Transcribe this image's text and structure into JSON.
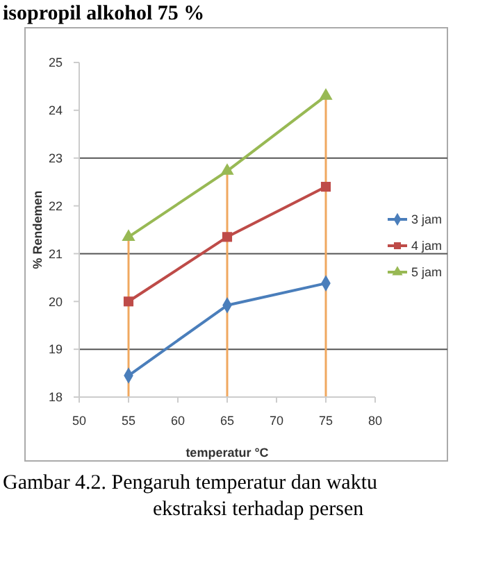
{
  "chart_data": {
    "type": "line",
    "title": "isopropil alkohol 75 %",
    "annotations": [
      "Gambar 4.2. Pengaruh temperatur dan waktu",
      "ekstraksi terhadap persen"
    ],
    "xlabel": "temperatur °C",
    "ylabel": "% Rendemen",
    "x": [
      55,
      65,
      75
    ],
    "series": [
      {
        "name": "3 jam",
        "color": "#4a7ebb",
        "marker": "diamond",
        "values": [
          18.45,
          19.92,
          20.38
        ]
      },
      {
        "name": "4 jam",
        "color": "#be4b48",
        "marker": "square",
        "values": [
          20.0,
          21.35,
          22.4
        ]
      },
      {
        "name": "5 jam",
        "color": "#98b954",
        "marker": "triangle",
        "values": [
          21.35,
          22.73,
          24.3
        ]
      }
    ],
    "xlim": [
      50,
      80
    ],
    "xticks": [
      50,
      55,
      60,
      65,
      70,
      75,
      80
    ],
    "ylim": [
      18,
      25
    ],
    "yticks": [
      18,
      19,
      20,
      21,
      22,
      23,
      24,
      25
    ],
    "ref_lines": [
      {
        "axis": "y",
        "value": 19,
        "color": "#555555"
      },
      {
        "axis": "y",
        "value": 21,
        "color": "#555555"
      },
      {
        "axis": "y",
        "value": 23,
        "color": "#555555"
      },
      {
        "axis": "x",
        "value": 55,
        "color": "#f0a860"
      },
      {
        "axis": "x",
        "value": 65,
        "color": "#f0a860"
      },
      {
        "axis": "x",
        "value": 75,
        "color": "#f0a860"
      }
    ],
    "legend": "right"
  }
}
